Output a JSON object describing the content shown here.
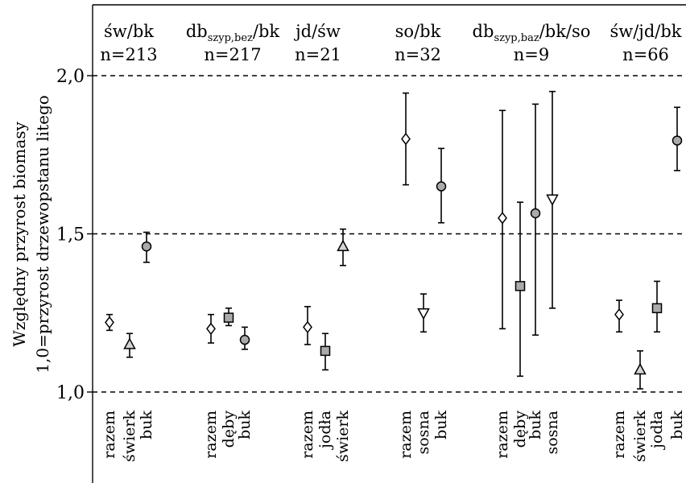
{
  "chart_data": {
    "type": "scatter",
    "ylabel_line1": "Względny przyrost biomasy",
    "ylabel_line2": "1,0=przyrost  drzewopstanu litego",
    "ylim": [
      0.75,
      2.2
    ],
    "yticks": [
      1.0,
      1.5,
      2.0
    ],
    "ytick_labels": [
      "1,0",
      "1,5",
      "2,0"
    ],
    "reference_lines": [
      1.0,
      1.5,
      2.0
    ],
    "grid": false,
    "groups": [
      {
        "title": "św/bk",
        "title_sub": "",
        "title_suffix": "",
        "n_label": "n=213",
        "points": [
          {
            "label": "razem",
            "marker": "diamond",
            "y": 1.22,
            "lo": 1.195,
            "hi": 1.245
          },
          {
            "label": "świerk",
            "marker": "triangle-up",
            "y": 1.15,
            "lo": 1.11,
            "hi": 1.185
          },
          {
            "label": "buk",
            "marker": "circle",
            "y": 1.46,
            "lo": 1.41,
            "hi": 1.505
          }
        ]
      },
      {
        "title": "db",
        "title_sub": "szyp,bez",
        "title_suffix": "/bk",
        "n_label": "n=217",
        "points": [
          {
            "label": "razem",
            "marker": "diamond",
            "y": 1.2,
            "lo": 1.155,
            "hi": 1.245
          },
          {
            "label": "dęby",
            "marker": "square",
            "y": 1.235,
            "lo": 1.21,
            "hi": 1.265
          },
          {
            "label": "buk",
            "marker": "circle",
            "y": 1.165,
            "lo": 1.135,
            "hi": 1.205
          }
        ]
      },
      {
        "title": "jd/św",
        "title_sub": "",
        "title_suffix": "",
        "n_label": "n=21",
        "points": [
          {
            "label": "razem",
            "marker": "diamond",
            "y": 1.205,
            "lo": 1.15,
            "hi": 1.27
          },
          {
            "label": "jodła",
            "marker": "square",
            "y": 1.13,
            "lo": 1.07,
            "hi": 1.185
          },
          {
            "label": "świerk",
            "marker": "triangle-up",
            "y": 1.46,
            "lo": 1.4,
            "hi": 1.515
          }
        ]
      },
      {
        "title": "so/bk",
        "title_sub": "",
        "title_suffix": "",
        "n_label": "n=32",
        "points": [
          {
            "label": "razem",
            "marker": "diamond",
            "y": 1.8,
            "lo": 1.655,
            "hi": 1.945
          },
          {
            "label": "sosna",
            "marker": "triangle-down",
            "y": 1.25,
            "lo": 1.19,
            "hi": 1.31
          },
          {
            "label": "buk",
            "marker": "circle",
            "y": 1.65,
            "lo": 1.535,
            "hi": 1.77
          }
        ]
      },
      {
        "title": "db",
        "title_sub": "szyp,baz",
        "title_suffix": "/bk/so",
        "n_label": "n=9",
        "points": [
          {
            "label": "razem",
            "marker": "diamond",
            "y": 1.55,
            "lo": 1.2,
            "hi": 1.89
          },
          {
            "label": "dęby",
            "marker": "square",
            "y": 1.335,
            "lo": 1.05,
            "hi": 1.6
          },
          {
            "label": "buk",
            "marker": "circle",
            "y": 1.565,
            "lo": 1.18,
            "hi": 1.91
          },
          {
            "label": "sosna",
            "marker": "triangle-down",
            "y": 1.61,
            "lo": 1.265,
            "hi": 1.95
          }
        ]
      },
      {
        "title": "św/jd/bk",
        "title_sub": "",
        "title_suffix": "",
        "n_label": "n=66",
        "points": [
          {
            "label": "razem",
            "marker": "diamond",
            "y": 1.245,
            "lo": 1.19,
            "hi": 1.29
          },
          {
            "label": "świerk",
            "marker": "triangle-up",
            "y": 1.07,
            "lo": 1.01,
            "hi": 1.13
          },
          {
            "label": "jodła",
            "marker": "square",
            "y": 1.265,
            "lo": 1.19,
            "hi": 1.35
          },
          {
            "label": "buk",
            "marker": "circle",
            "y": 1.795,
            "lo": 1.7,
            "hi": 1.9
          }
        ]
      }
    ],
    "marker_fill": {
      "circle": "#aaaaaa",
      "square": "#aaaaaa",
      "triangle-up": "#d4d4d4",
      "triangle-down": "#ffffff",
      "diamond": "#ffffff"
    }
  }
}
